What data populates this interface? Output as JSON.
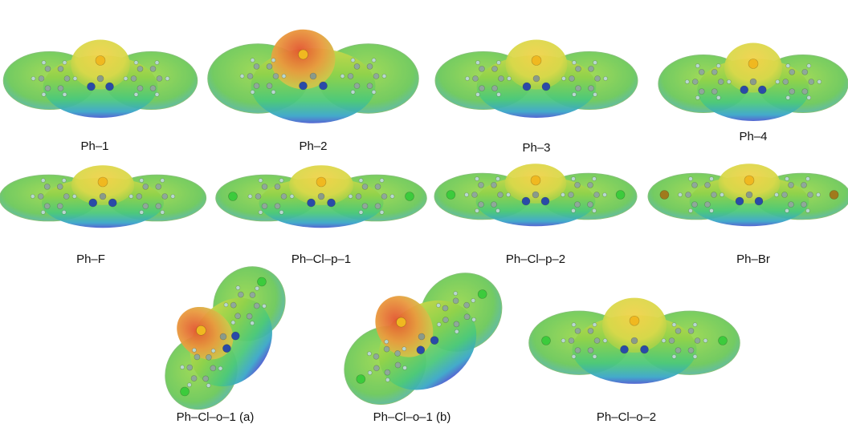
{
  "figure": {
    "panels": [
      {
        "label": "Ph–1"
      },
      {
        "label": "Ph–2"
      },
      {
        "label": "Ph–3"
      },
      {
        "label": "Ph–4"
      },
      {
        "label": "Ph–F"
      },
      {
        "label": "Ph–Cl–p–1"
      },
      {
        "label": "Ph–Cl–p–2"
      },
      {
        "label": "Ph–Br"
      },
      {
        "label": "Ph–Cl–o–1 (a)"
      },
      {
        "label": "Ph–Cl–o–1 (b)"
      },
      {
        "label": "Ph–Cl–o–2"
      }
    ]
  }
}
